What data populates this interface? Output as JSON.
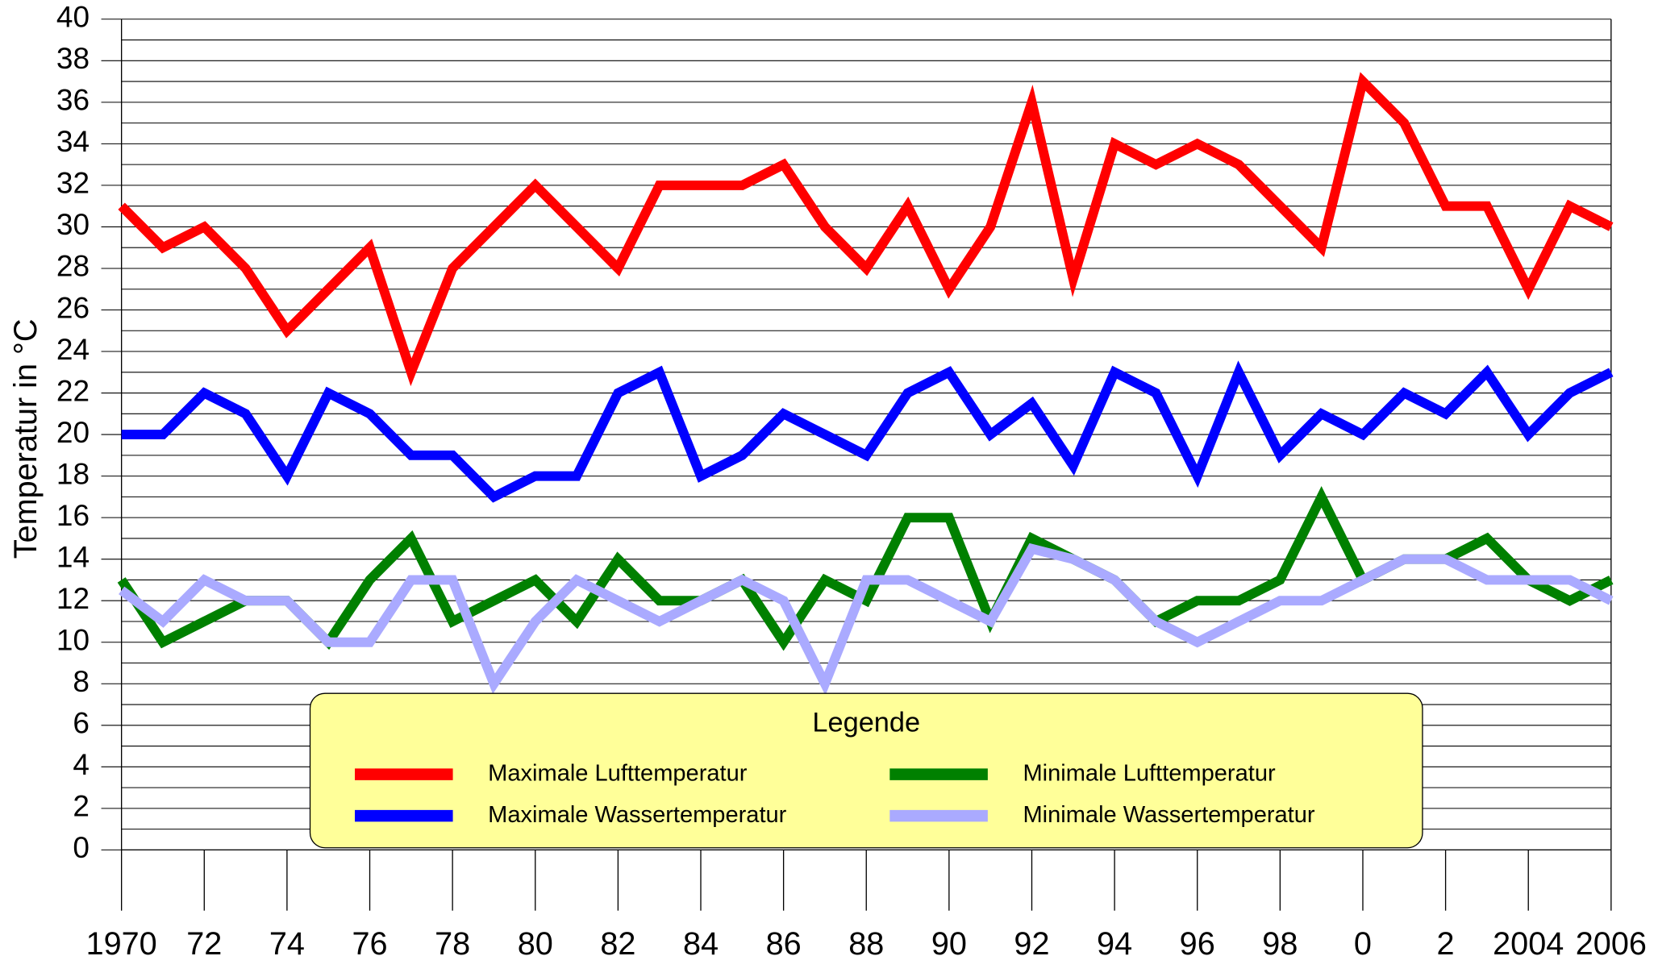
{
  "chart_data": {
    "type": "line",
    "y_label": "Temperatur in °C",
    "legend_title": "Legende",
    "legend_position": "bottom",
    "categories": [
      "1970",
      null,
      "72",
      null,
      "74",
      null,
      "76",
      null,
      "78",
      null,
      "80",
      null,
      "82",
      null,
      "84",
      null,
      "86",
      null,
      "88",
      null,
      "90",
      null,
      "92",
      null,
      "94",
      null,
      "96",
      null,
      "98",
      null,
      "0",
      null,
      "2",
      null,
      "2004",
      null,
      "2006"
    ],
    "ylim": [
      0,
      40
    ],
    "yticks": [
      0,
      2,
      4,
      6,
      8,
      10,
      12,
      14,
      16,
      18,
      20,
      22,
      24,
      26,
      28,
      30,
      32,
      34,
      36,
      38,
      40
    ],
    "yticks_minor": [
      1,
      3,
      5,
      7,
      9,
      11,
      13,
      15,
      17,
      19,
      21,
      23,
      25,
      27,
      29,
      31,
      33,
      35,
      37,
      39
    ],
    "grid": true,
    "series": [
      {
        "name": "Maximale Lufttemperatur",
        "color": "#ff0000",
        "values": [
          31,
          29,
          30,
          28,
          25,
          27,
          29,
          23,
          28,
          30,
          32,
          30,
          28,
          32,
          32,
          32,
          33,
          30,
          28,
          31,
          27,
          30,
          36,
          27.5,
          34,
          33,
          34,
          33,
          31,
          29,
          37,
          35,
          31,
          31,
          27,
          31,
          30
        ]
      },
      {
        "name": "Maximale Wassertemperatur",
        "color": "#0000ff",
        "values": [
          20,
          20,
          22,
          21,
          18,
          22,
          21,
          19,
          19,
          17,
          18,
          18,
          22,
          23,
          18,
          19,
          21,
          20,
          19,
          22,
          23,
          20,
          21.5,
          18.5,
          23,
          22,
          18,
          23,
          19,
          21,
          20,
          22,
          21,
          23,
          20,
          22,
          23
        ]
      },
      {
        "name": "Minimale Lufttemperatur",
        "color": "#008000",
        "values": [
          13,
          10,
          11,
          12,
          12,
          10,
          13,
          15,
          11,
          12,
          13,
          11,
          14,
          12,
          12,
          13,
          10,
          13,
          12,
          16,
          16,
          11,
          15,
          14,
          13,
          11,
          12,
          12,
          13,
          17,
          13,
          14,
          14,
          15,
          13,
          12,
          13
        ]
      },
      {
        "name": "Minimale Wassertemperatur",
        "color": "#aaaaff",
        "values": [
          12.5,
          11,
          13,
          12,
          12,
          10,
          10,
          13,
          13,
          8,
          11,
          13,
          12,
          11,
          12,
          13,
          12,
          8,
          13,
          13,
          12,
          11,
          14.5,
          14,
          13,
          11,
          10,
          11,
          12,
          12,
          13,
          14,
          14,
          13,
          13,
          13,
          12
        ]
      }
    ]
  }
}
